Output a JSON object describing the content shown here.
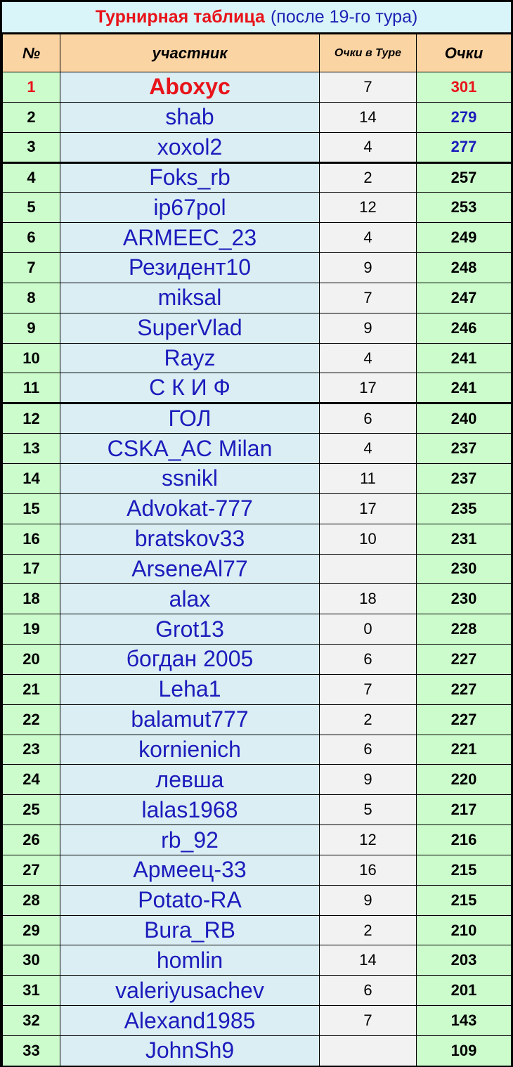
{
  "title": {
    "main": "Турнирная таблица",
    "sub": "(после 19-го тура)"
  },
  "headers": {
    "num": "№",
    "name": "участник",
    "tour_points": "Очки в Туре",
    "points": "Очки"
  },
  "rows": [
    {
      "num": "1",
      "name": "Aboxyc",
      "tour": "7",
      "points": "301"
    },
    {
      "num": "2",
      "name": "shab",
      "tour": "14",
      "points": "279"
    },
    {
      "num": "3",
      "name": "xoxol2",
      "tour": "4",
      "points": "277"
    },
    {
      "num": "4",
      "name": "Foks_rb",
      "tour": "2",
      "points": "257"
    },
    {
      "num": "5",
      "name": "ip67pol",
      "tour": "12",
      "points": "253"
    },
    {
      "num": "6",
      "name": "ARMEEC_23",
      "tour": "4",
      "points": "249"
    },
    {
      "num": "7",
      "name": "Резидент10",
      "tour": "9",
      "points": "248"
    },
    {
      "num": "8",
      "name": "miksal",
      "tour": "7",
      "points": "247"
    },
    {
      "num": "9",
      "name": "SuperVlad",
      "tour": "9",
      "points": "246"
    },
    {
      "num": "10",
      "name": "Rayz",
      "tour": "4",
      "points": "241"
    },
    {
      "num": "11",
      "name": "С К И Ф",
      "tour": "17",
      "points": "241"
    },
    {
      "num": "12",
      "name": "ГОЛ",
      "tour": "6",
      "points": "240"
    },
    {
      "num": "13",
      "name": "CSKA_AC Milan",
      "tour": "4",
      "points": "237"
    },
    {
      "num": "14",
      "name": "ssnikl",
      "tour": "11",
      "points": "237"
    },
    {
      "num": "15",
      "name": "Advokat-777",
      "tour": "17",
      "points": "235"
    },
    {
      "num": "16",
      "name": "bratskov33",
      "tour": "10",
      "points": "231"
    },
    {
      "num": "17",
      "name": "ArseneAl77",
      "tour": "",
      "points": "230"
    },
    {
      "num": "18",
      "name": "alax",
      "tour": "18",
      "points": "230"
    },
    {
      "num": "19",
      "name": "Grot13",
      "tour": "0",
      "points": "228"
    },
    {
      "num": "20",
      "name": "богдан 2005",
      "tour": "6",
      "points": "227"
    },
    {
      "num": "21",
      "name": "Leha1",
      "tour": "7",
      "points": "227"
    },
    {
      "num": "22",
      "name": "balamut777",
      "tour": "2",
      "points": "227"
    },
    {
      "num": "23",
      "name": "kornienich",
      "tour": "6",
      "points": "221"
    },
    {
      "num": "24",
      "name": "левша",
      "tour": "9",
      "points": "220"
    },
    {
      "num": "25",
      "name": "lalas1968",
      "tour": "5",
      "points": "217"
    },
    {
      "num": "26",
      "name": "rb_92",
      "tour": "12",
      "points": "216"
    },
    {
      "num": "27",
      "name": "Армеец-33",
      "tour": "16",
      "points": "215"
    },
    {
      "num": "28",
      "name": "Potato-RA",
      "tour": "9",
      "points": "215"
    },
    {
      "num": "29",
      "name": "Bura_RB",
      "tour": "2",
      "points": "210"
    },
    {
      "num": "30",
      "name": "homlin",
      "tour": "14",
      "points": "203"
    },
    {
      "num": "31",
      "name": "valeriyusachev",
      "tour": "6",
      "points": "201"
    },
    {
      "num": "32",
      "name": "Alexand1985",
      "tour": "7",
      "points": "143"
    },
    {
      "num": "33",
      "name": "JohnSh9",
      "tour": "",
      "points": "109"
    }
  ],
  "colors": {
    "title_bg": "#d9f5f9",
    "header_bg": "#fbd4a4",
    "green_cell": "#ccfccc",
    "name_cell": "#daeef3",
    "tour_cell": "#f2f2f2",
    "leader_red": "#e8141b",
    "name_blue": "#1c1cbc"
  }
}
